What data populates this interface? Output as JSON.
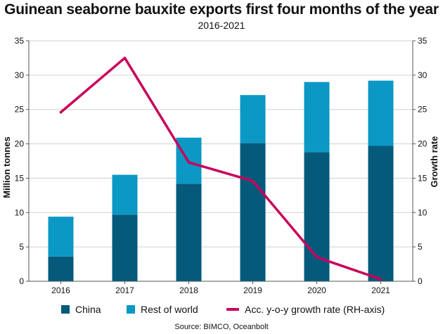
{
  "title": "Guinean seaborne bauxite exports first four months of the year",
  "subtitle": "2016-2021",
  "source": "Source: BIMCO, Oceanbolt",
  "colors": {
    "china": "#055a7c",
    "rest": "#0c98c4",
    "line": "#c8005a",
    "grid": "#d0d0d0",
    "axis": "#555555"
  },
  "chart_data": {
    "type": "bar",
    "stacked": true,
    "categories": [
      "2016",
      "2017",
      "2018",
      "2019",
      "2020",
      "2021"
    ],
    "series": [
      {
        "name": "China",
        "values": [
          3.6,
          9.7,
          14.2,
          20.1,
          18.8,
          19.7
        ]
      },
      {
        "name": "Rest of world",
        "values": [
          5.8,
          5.8,
          6.7,
          7.0,
          10.2,
          9.5
        ]
      }
    ],
    "line_series": {
      "name": "Acc. y-o-y growth rate (RH-axis)",
      "axis": "right",
      "values": [
        24.6,
        32.5,
        17.3,
        14.6,
        3.5,
        0.3
      ]
    },
    "ylabel": "Million tonnes",
    "y2label": "Growth rate",
    "ylim": [
      0,
      35
    ],
    "y2lim": [
      0,
      35
    ],
    "yticks": [
      "0",
      "5",
      "10",
      "15",
      "20",
      "25",
      "30",
      "35"
    ],
    "y2ticks": [
      "0",
      "5",
      "10",
      "15",
      "20",
      "25",
      "30",
      "35"
    ],
    "grid": true,
    "legend_position": "bottom"
  }
}
